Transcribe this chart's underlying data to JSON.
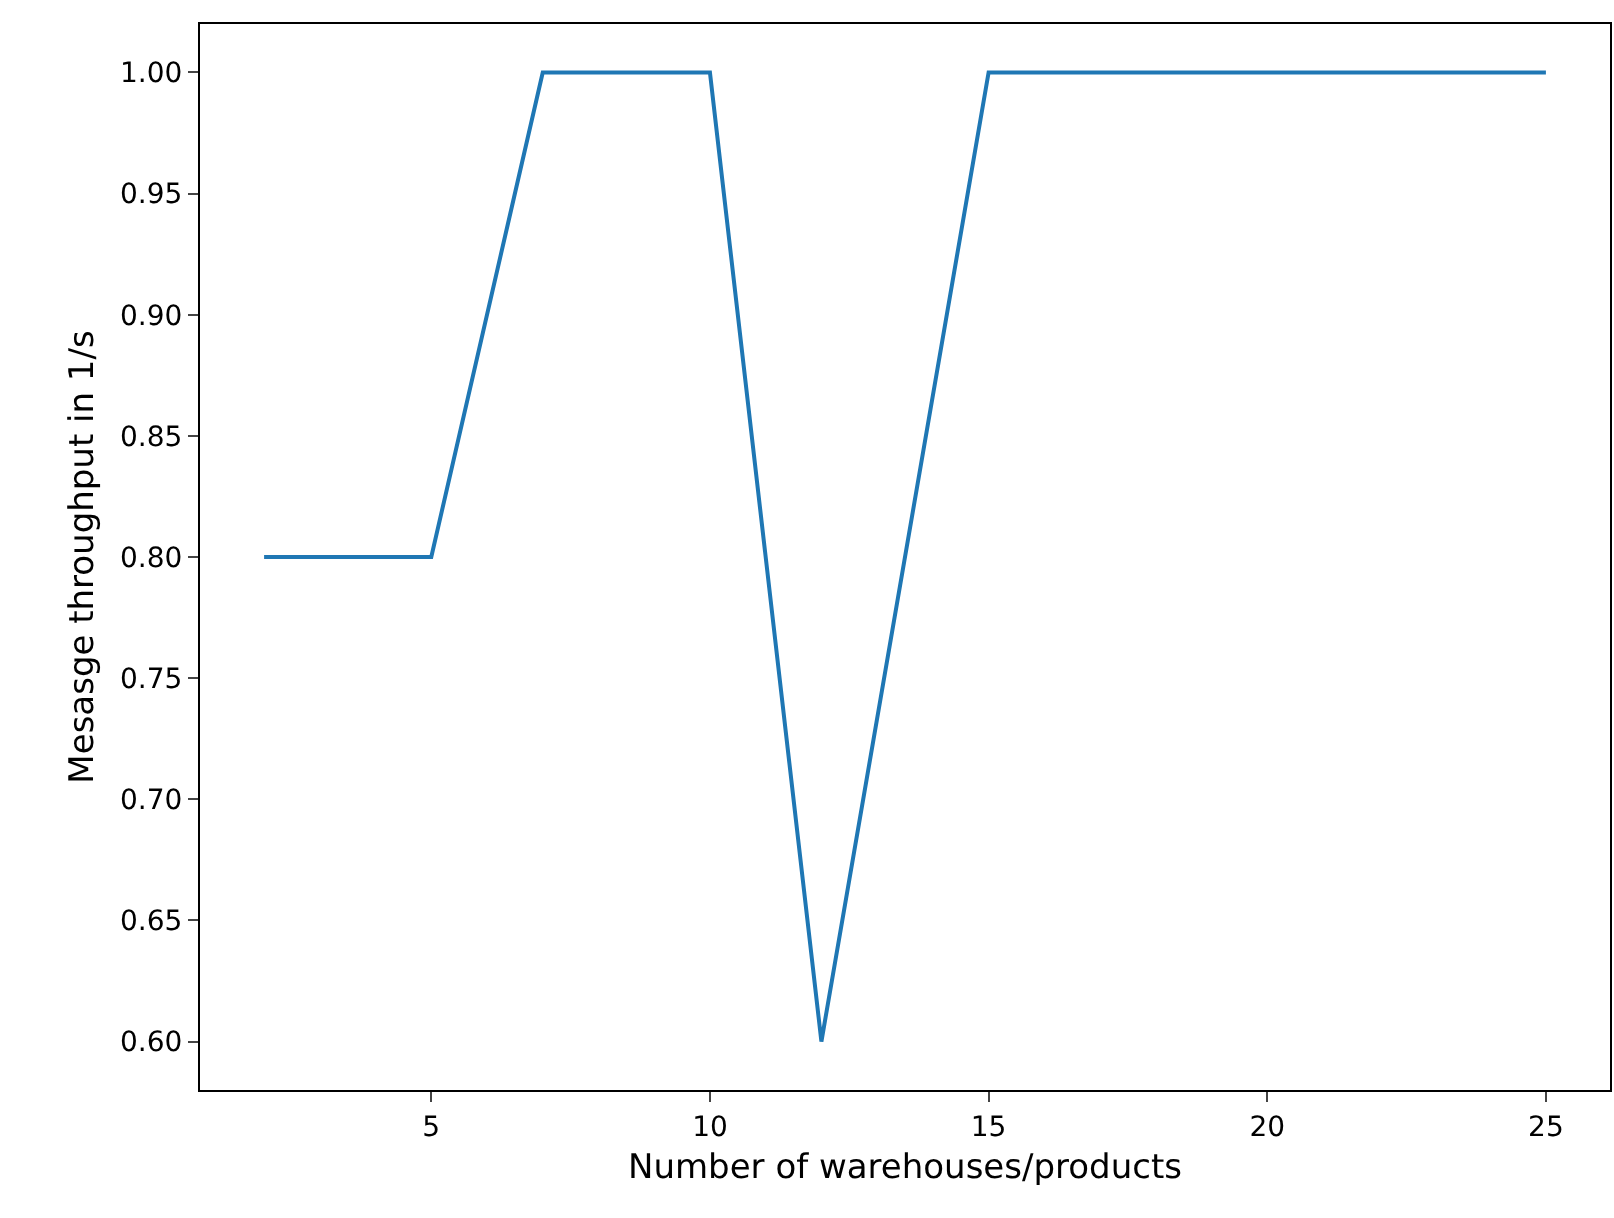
{
  "chart_data": {
    "type": "line",
    "xlabel": "Number of warehouses/products",
    "ylabel": "Mesasge throughput in 1/s",
    "x": [
      2,
      5,
      7,
      10,
      12,
      15,
      25
    ],
    "series": [
      {
        "color": "#1f77b4",
        "values": [
          0.8,
          0.8,
          1.0,
          1.0,
          0.6,
          1.0,
          1.0
        ]
      }
    ],
    "xlim": [
      0.85,
      26.15
    ],
    "xticks": [
      5,
      10,
      15,
      20,
      25
    ],
    "ylim": [
      0.58,
      1.02
    ],
    "yticks": [
      {
        "value": 0.6,
        "label": "0.60"
      },
      {
        "value": 0.65,
        "label": "0.65"
      },
      {
        "value": 0.7,
        "label": "0.70"
      },
      {
        "value": 0.75,
        "label": "0.75"
      },
      {
        "value": 0.8,
        "label": "0.80"
      },
      {
        "value": 0.85,
        "label": "0.85"
      },
      {
        "value": 0.9,
        "label": "0.90"
      },
      {
        "value": 0.95,
        "label": "0.95"
      },
      {
        "value": 1.0,
        "label": "1.00"
      }
    ],
    "marker": "none",
    "line_style": "solid"
  }
}
